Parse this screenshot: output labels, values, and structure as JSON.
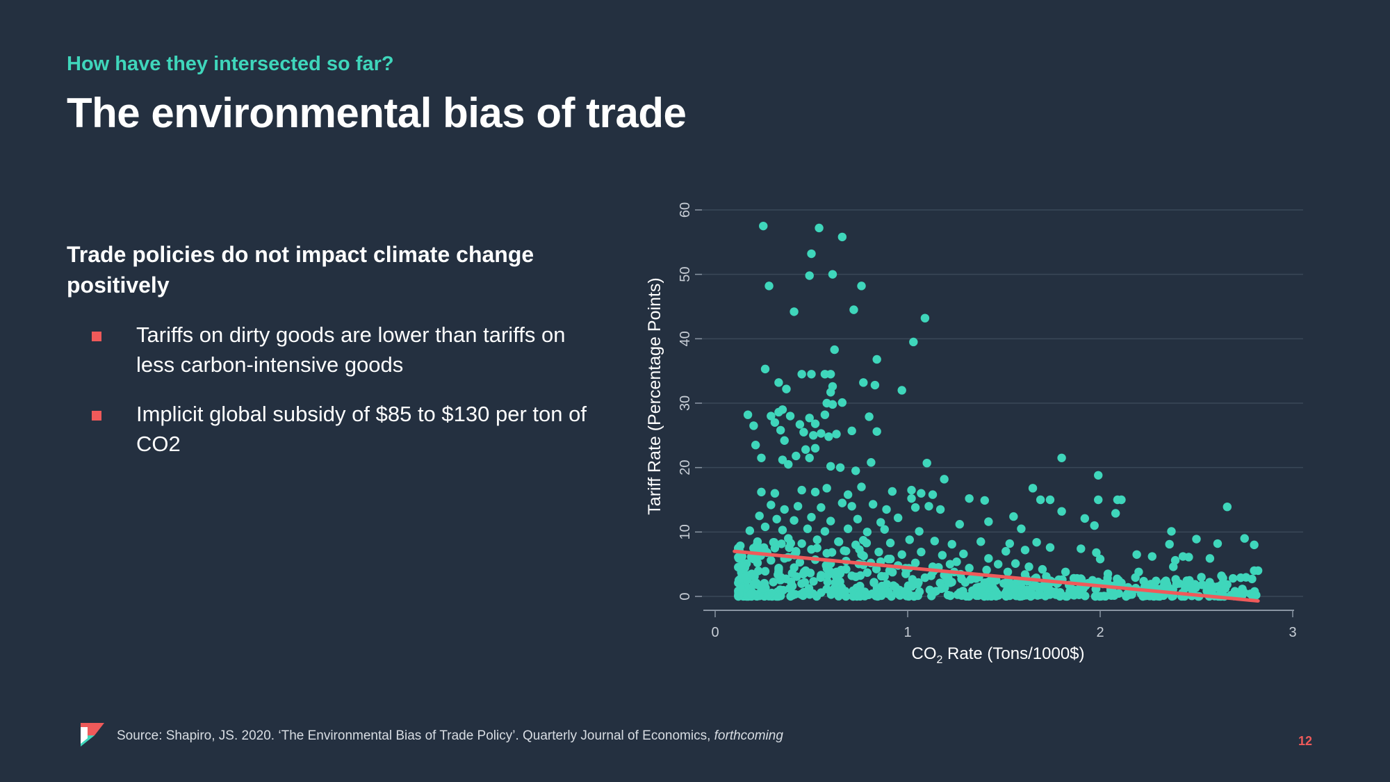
{
  "header": {
    "eyebrow": "How have they intersected so far?",
    "title": "The environmental bias of trade"
  },
  "content": {
    "subhead": "Trade policies do not impact climate change positively",
    "bullets": [
      "Tariffs on dirty goods are lower than tariffs on less carbon-intensive goods",
      "Implicit global subsidy of $85 to $130 per ton of CO2"
    ]
  },
  "colors": {
    "background": "#243040",
    "accent": "#3fd6bb",
    "trend": "#ef5a5a",
    "bullet": "#ef5a5a"
  },
  "chart_data": {
    "type": "scatter",
    "xlabel_prefix": "CO",
    "xlabel_sub": "2",
    "xlabel_suffix": " Rate (Tons/1000$)",
    "ylabel": "Tariff Rate (Percentage Points)",
    "xlim": [
      0,
      3
    ],
    "ylim": [
      0,
      60
    ],
    "x_ticks": [
      "0",
      "1",
      "2",
      "3"
    ],
    "y_ticks": [
      "0",
      "10",
      "20",
      "30",
      "40",
      "50",
      "60"
    ],
    "grid": true,
    "trend_line": {
      "x": [
        0.1,
        2.82
      ],
      "y": [
        7.0,
        -0.7
      ]
    },
    "points_note": "approx. read from figure; dense cluster near y=0 for x in [0.1, 2.8]",
    "points": [
      [
        0.25,
        57.5
      ],
      [
        0.54,
        57.2
      ],
      [
        0.66,
        55.8
      ],
      [
        0.5,
        53.2
      ],
      [
        0.28,
        48.2
      ],
      [
        0.49,
        49.8
      ],
      [
        0.61,
        50
      ],
      [
        0.76,
        48.2
      ],
      [
        0.41,
        44.2
      ],
      [
        0.72,
        44.5
      ],
      [
        1.09,
        43.2
      ],
      [
        0.62,
        38.3
      ],
      [
        1.03,
        39.5
      ],
      [
        0.84,
        36.8
      ],
      [
        0.26,
        35.3
      ],
      [
        0.45,
        34.5
      ],
      [
        0.5,
        34.5
      ],
      [
        0.57,
        34.5
      ],
      [
        0.6,
        34.5
      ],
      [
        0.33,
        33.2
      ],
      [
        0.37,
        32.2
      ],
      [
        0.61,
        32.6
      ],
      [
        0.6,
        31.7
      ],
      [
        0.77,
        33.2
      ],
      [
        0.83,
        32.8
      ],
      [
        0.97,
        32
      ],
      [
        0.58,
        30
      ],
      [
        0.61,
        29.8
      ],
      [
        0.66,
        30.1
      ],
      [
        0.17,
        28.2
      ],
      [
        0.29,
        28
      ],
      [
        0.33,
        28.6
      ],
      [
        0.35,
        29
      ],
      [
        0.39,
        28
      ],
      [
        0.49,
        27.7
      ],
      [
        0.52,
        26.8
      ],
      [
        0.57,
        28.2
      ],
      [
        0.2,
        26.5
      ],
      [
        0.31,
        27
      ],
      [
        0.34,
        25.8
      ],
      [
        0.44,
        26.7
      ],
      [
        0.46,
        25.5
      ],
      [
        0.51,
        25
      ],
      [
        0.55,
        25.3
      ],
      [
        0.59,
        24.8
      ],
      [
        0.63,
        25.2
      ],
      [
        0.8,
        27.9
      ],
      [
        0.84,
        25.6
      ],
      [
        0.71,
        25.7
      ],
      [
        0.21,
        23.5
      ],
      [
        0.36,
        24.2
      ],
      [
        0.47,
        22.8
      ],
      [
        0.52,
        23
      ],
      [
        0.24,
        21.5
      ],
      [
        0.35,
        21.2
      ],
      [
        0.38,
        20.5
      ],
      [
        0.42,
        21.8
      ],
      [
        0.49,
        21.5
      ],
      [
        0.6,
        20.2
      ],
      [
        0.65,
        20
      ],
      [
        0.73,
        19.5
      ],
      [
        0.81,
        20.8
      ],
      [
        1.1,
        20.7
      ],
      [
        1.8,
        21.5
      ],
      [
        1.99,
        18.8
      ],
      [
        1.19,
        18.2
      ],
      [
        0.24,
        16.2
      ],
      [
        0.31,
        16
      ],
      [
        0.45,
        16.5
      ],
      [
        0.52,
        16.2
      ],
      [
        0.58,
        16.8
      ],
      [
        0.69,
        15.8
      ],
      [
        0.76,
        17
      ],
      [
        0.92,
        16.3
      ],
      [
        1.02,
        16.5
      ],
      [
        1.07,
        16
      ],
      [
        1.13,
        15.8
      ],
      [
        1.02,
        15.2
      ],
      [
        1.32,
        15.2
      ],
      [
        1.4,
        14.9
      ],
      [
        1.65,
        16.8
      ],
      [
        1.69,
        15
      ],
      [
        1.74,
        15
      ],
      [
        1.99,
        15
      ],
      [
        2.09,
        15
      ],
      [
        2.11,
        15
      ],
      [
        0.29,
        14.2
      ],
      [
        0.36,
        13.5
      ],
      [
        0.43,
        14
      ],
      [
        0.55,
        13.8
      ],
      [
        0.66,
        14.5
      ],
      [
        0.71,
        14
      ],
      [
        0.82,
        14.3
      ],
      [
        0.89,
        13.5
      ],
      [
        1.04,
        13.8
      ],
      [
        1.11,
        14
      ],
      [
        1.17,
        13.5
      ],
      [
        1.8,
        13.2
      ],
      [
        1.55,
        12.4
      ],
      [
        1.92,
        12.1
      ],
      [
        2.08,
        12.9
      ],
      [
        2.66,
        13.9
      ],
      [
        0.23,
        12.5
      ],
      [
        0.32,
        12
      ],
      [
        0.41,
        11.8
      ],
      [
        0.5,
        12.3
      ],
      [
        0.6,
        11.7
      ],
      [
        0.74,
        12
      ],
      [
        0.86,
        11.5
      ],
      [
        0.95,
        12.2
      ],
      [
        1.27,
        11.2
      ],
      [
        1.42,
        11.6
      ],
      [
        1.97,
        11
      ],
      [
        0.18,
        10.2
      ],
      [
        0.26,
        10.8
      ],
      [
        0.35,
        10.3
      ],
      [
        0.48,
        10.5
      ],
      [
        0.57,
        10.1
      ],
      [
        0.69,
        10.5
      ],
      [
        0.79,
        10
      ],
      [
        0.88,
        10.4
      ],
      [
        1.06,
        10.1
      ],
      [
        1.59,
        10.5
      ],
      [
        2.37,
        10.1
      ],
      [
        2.5,
        8.9
      ],
      [
        2.61,
        8.2
      ],
      [
        2.75,
        9
      ],
      [
        2.8,
        8
      ],
      [
        0.22,
        8.5
      ],
      [
        0.38,
        9
      ],
      [
        0.45,
        8.2
      ],
      [
        0.53,
        8.8
      ],
      [
        0.64,
        8.5
      ],
      [
        0.73,
        8
      ],
      [
        0.91,
        8.3
      ],
      [
        1.01,
        8.8
      ],
      [
        1.14,
        8.6
      ],
      [
        1.23,
        8.1
      ],
      [
        1.38,
        8.5
      ],
      [
        1.53,
        8.2
      ],
      [
        1.67,
        8.4
      ],
      [
        1.74,
        7.6
      ],
      [
        2.36,
        8.1
      ],
      [
        1.61,
        7.2
      ],
      [
        1.51,
        7
      ],
      [
        1.9,
        7.4
      ],
      [
        1.98,
        6.8
      ],
      [
        2.19,
        6.5
      ],
      [
        2.27,
        6.2
      ],
      [
        2.46,
        6.1
      ],
      [
        2.57,
        5.9
      ],
      [
        2.39,
        5.6
      ],
      [
        2.43,
        6.2
      ],
      [
        2.0,
        5.8
      ],
      [
        0.14,
        6.2
      ],
      [
        0.27,
        6.8
      ],
      [
        0.31,
        7.5
      ],
      [
        0.42,
        7
      ],
      [
        0.5,
        7.3
      ],
      [
        0.58,
        6.7
      ],
      [
        0.67,
        7.1
      ],
      [
        0.76,
        6.5
      ],
      [
        0.85,
        6.9
      ],
      [
        0.97,
        6.5
      ],
      [
        1.07,
        6.9
      ],
      [
        1.18,
        6.4
      ],
      [
        1.29,
        6.6
      ],
      [
        1.42,
        5.9
      ],
      [
        1.47,
        5
      ],
      [
        1.56,
        5.1
      ],
      [
        1.63,
        4.6
      ],
      [
        1.7,
        4.2
      ],
      [
        1.82,
        3.8
      ],
      [
        2.04,
        3.5
      ],
      [
        2.2,
        3.8
      ],
      [
        2.38,
        4.6
      ],
      [
        2.63,
        3.2
      ],
      [
        2.69,
        2.8
      ],
      [
        2.73,
        2.9
      ],
      [
        2.8,
        4
      ],
      [
        2.82,
        4
      ],
      [
        0.15,
        4.8
      ],
      [
        0.22,
        5.2
      ],
      [
        0.29,
        5.6
      ],
      [
        0.36,
        5.9
      ],
      [
        0.44,
        5.3
      ],
      [
        0.52,
        5.7
      ],
      [
        0.6,
        5.1
      ],
      [
        0.68,
        5.5
      ],
      [
        0.77,
        4.9
      ],
      [
        0.86,
        5.4
      ],
      [
        0.95,
        4.8
      ],
      [
        1.04,
        5.2
      ],
      [
        1.13,
        4.6
      ],
      [
        1.22,
        5
      ],
      [
        1.32,
        4.4
      ],
      [
        1.41,
        4.1
      ],
      [
        1.52,
        3.8
      ],
      [
        1.61,
        3.4
      ],
      [
        1.72,
        3.1
      ],
      [
        1.88,
        2.8
      ],
      [
        1.96,
        2.5
      ],
      [
        2.11,
        2.1
      ],
      [
        2.29,
        2.4
      ],
      [
        2.41,
        2.0
      ],
      [
        2.53,
        1.8
      ],
      [
        2.61,
        1.5
      ],
      [
        0.19,
        3.5
      ],
      [
        0.26,
        3.9
      ],
      [
        0.33,
        4.2
      ],
      [
        0.4,
        3.6
      ],
      [
        0.47,
        4
      ],
      [
        0.55,
        3.3
      ],
      [
        0.63,
        3.8
      ],
      [
        0.71,
        3.2
      ],
      [
        0.79,
        3.7
      ],
      [
        0.88,
        3.1
      ],
      [
        0.99,
        3.5
      ],
      [
        1.09,
        2.9
      ],
      [
        1.19,
        3.3
      ],
      [
        1.28,
        2.7
      ],
      [
        1.37,
        3.0
      ],
      [
        1.46,
        2.5
      ],
      [
        1.57,
        2.3
      ],
      [
        1.66,
        2.7
      ],
      [
        1.78,
        2.1
      ],
      [
        1.92,
        1.9
      ],
      [
        2.06,
        1.6
      ],
      [
        2.23,
        1.4
      ],
      [
        2.35,
        1.2
      ],
      [
        2.48,
        1.0
      ],
      [
        2.57,
        0.9
      ],
      [
        2.7,
        0.8
      ],
      [
        2.78,
        0.4
      ],
      [
        2.81,
        0.2
      ]
    ]
  },
  "footer": {
    "source_text": "Source: Shapiro, JS. 2020. ‘The Environmental Bias of Trade Policy’. Quarterly Journal of Economics, ",
    "source_italic": "forthcoming",
    "page_number": "12"
  }
}
